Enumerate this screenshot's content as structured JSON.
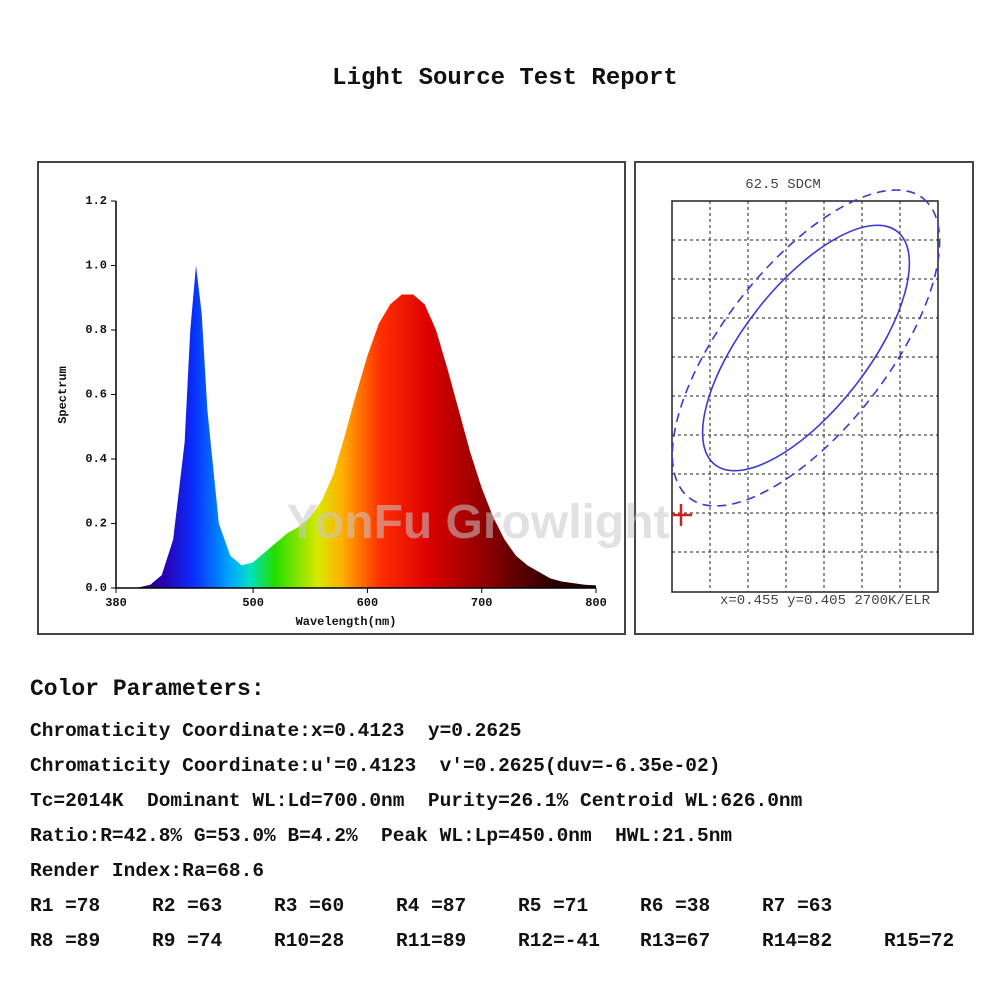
{
  "title": "Light Source Test Report",
  "watermark": "YonFu Growlight",
  "spectrum": {
    "type": "area",
    "x_label": "Wavelength(nm)",
    "y_label": "Spectrum",
    "x": [
      380,
      400,
      410,
      420,
      430,
      440,
      445,
      450,
      455,
      460,
      470,
      480,
      490,
      500,
      510,
      520,
      530,
      540,
      550,
      560,
      570,
      580,
      590,
      600,
      610,
      620,
      630,
      640,
      650,
      660,
      670,
      680,
      690,
      700,
      710,
      720,
      730,
      740,
      750,
      760,
      770,
      780,
      790,
      800
    ],
    "values": [
      0,
      0.002,
      0.01,
      0.04,
      0.15,
      0.45,
      0.8,
      1.0,
      0.85,
      0.55,
      0.2,
      0.1,
      0.07,
      0.08,
      0.11,
      0.14,
      0.17,
      0.19,
      0.22,
      0.27,
      0.35,
      0.47,
      0.6,
      0.72,
      0.82,
      0.88,
      0.91,
      0.91,
      0.88,
      0.8,
      0.68,
      0.55,
      0.42,
      0.31,
      0.22,
      0.15,
      0.1,
      0.07,
      0.05,
      0.03,
      0.02,
      0.015,
      0.01,
      0.008
    ],
    "xlim": [
      380,
      800
    ],
    "ylim": [
      0,
      1.2
    ],
    "xticks": [
      380,
      500,
      600,
      700,
      800
    ],
    "yticks": [
      {
        "value": 0,
        "label": "0.0"
      },
      0.2,
      0.4,
      0.6,
      0.8,
      {
        "value": 1,
        "label": "1.0"
      },
      1.2
    ]
  },
  "sdcm": {
    "title": "62.5 SDCM",
    "caption": "x=0.455 y=0.405 2700K/ELR"
  },
  "parameters": {
    "heading": "Color Parameters:",
    "lines": [
      "Chromaticity Coordinate:x=0.4123  y=0.2625",
      "Chromaticity Coordinate:u'=0.4123  v'=0.2625(duv=-6.35e-02)",
      "Tc=2014K  Dominant WL:Ld=700.0nm  Purity=26.1% Centroid WL:626.0nm",
      "Ratio:R=42.8% G=53.0% B=4.2%  Peak WL:Lp=450.0nm  HWL:21.5nm",
      "Render Index:Ra=68.6"
    ],
    "render_indices": [
      [
        "R1 =78",
        "R2 =63",
        "R3 =60",
        "R4 =87",
        "R5 =71",
        "R6 =38",
        "R7 =63"
      ],
      [
        "R8 =89",
        "R9 =74",
        "R10=28",
        "R11=89",
        "R12=-41",
        "R13=67",
        "R14=82",
        "R15=72"
      ]
    ]
  }
}
